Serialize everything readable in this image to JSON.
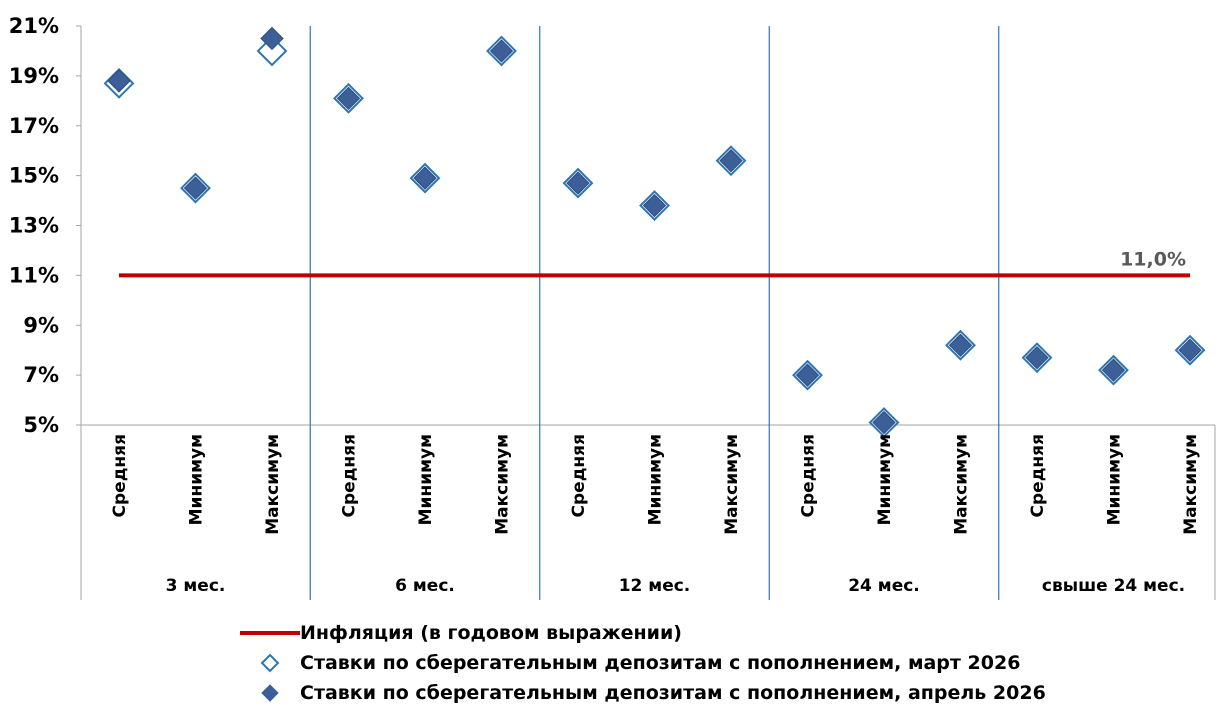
{
  "chart_data": {
    "type": "scatter",
    "y_ticks": [
      "5%",
      "7%",
      "9%",
      "11%",
      "13%",
      "15%",
      "17%",
      "19%",
      "21%"
    ],
    "ylim": [
      5,
      21
    ],
    "groups": [
      {
        "label": "3 мес.",
        "categories": [
          "Средняя",
          "Минимум",
          "Максимум"
        ]
      },
      {
        "label": "6 мес.",
        "categories": [
          "Средняя",
          "Минимум",
          "Максимум"
        ]
      },
      {
        "label": "12 мес.",
        "categories": [
          "Средняя",
          "Минимум",
          "Максимум"
        ]
      },
      {
        "label": "24 мес.",
        "categories": [
          "Средняя",
          "Минимум",
          "Максимум"
        ]
      },
      {
        "label": "свыше 24 мес.",
        "categories": [
          "Средняя",
          "Минимум",
          "Максимум"
        ]
      }
    ],
    "series": [
      {
        "name": "Инфляция (в годовом выражении)",
        "kind": "line",
        "color": "#C00000",
        "values": [
          11.0,
          11.0,
          11.0,
          11.0,
          11.0,
          11.0,
          11.0,
          11.0,
          11.0,
          11.0,
          11.0,
          11.0,
          11.0,
          11.0,
          11.0
        ]
      },
      {
        "name": "Ставки по сберегательным депозитам с пополнением, март 2026",
        "kind": "marker-hollow",
        "color": "#2E75B6",
        "values": [
          18.7,
          14.5,
          20.0,
          18.1,
          14.9,
          20.0,
          14.7,
          13.8,
          15.6,
          7.0,
          5.1,
          8.2,
          7.7,
          7.2,
          8.0
        ]
      },
      {
        "name": "Ставки по сберегательным депозитам с пополнением, апрель 2026",
        "kind": "marker-filled",
        "color": "#3B5F96",
        "values": [
          18.8,
          14.5,
          20.5,
          18.1,
          14.9,
          20.0,
          14.7,
          13.8,
          15.6,
          7.0,
          5.1,
          8.2,
          7.7,
          7.2,
          8.0
        ]
      }
    ],
    "annotation": "11,0%",
    "legend_position": "bottom"
  }
}
